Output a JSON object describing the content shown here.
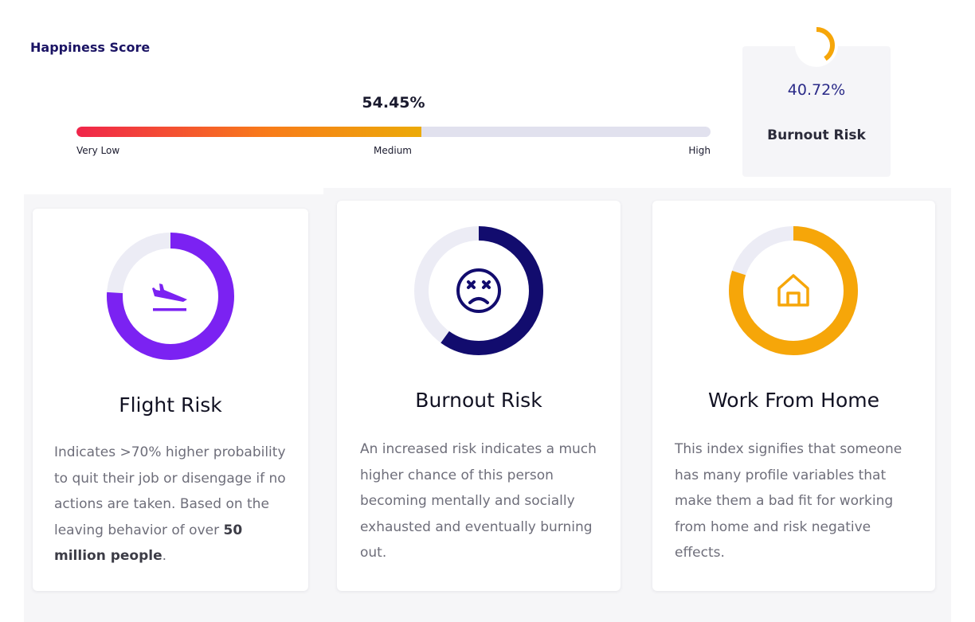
{
  "happiness": {
    "title": "Happiness Score",
    "value_text": "54.45%",
    "value": 54.45,
    "scale_labels": {
      "low": "Very Low",
      "mid": "Medium",
      "high": "High"
    }
  },
  "burnout_summary": {
    "value_text": "40.72%",
    "value": 40.72,
    "label": "Burnout Risk",
    "color": "#f6a609"
  },
  "cards": [
    {
      "id": "flight",
      "title": "Flight Risk",
      "icon": "airplane-departure-icon",
      "color": "#7b22f2",
      "level": 0.76,
      "desc_before": "Indicates >70% higher probability to quit their job or disengage if no actions are taken. Based on the leaving behavior of over ",
      "desc_bold": "50 million people",
      "desc_after": "."
    },
    {
      "id": "burnout",
      "title": "Burnout Risk",
      "icon": "dizzy-face-icon",
      "color": "#120c6e",
      "level": 0.6,
      "desc": "An increased risk indicates a much higher chance of this person becoming mentally and socially exhausted and eventually burning out."
    },
    {
      "id": "wfh",
      "title": "Work From Home",
      "icon": "home-icon",
      "color": "#f6a609",
      "level": 0.8,
      "desc": "This index signifies that someone has many profile variables that make them a bad fit for working from home and risk negative effects."
    }
  ],
  "colors": {
    "track": "#ececf5",
    "accent_navy": "#1b1464",
    "gradient": [
      "#f0254a",
      "#f87b1a",
      "#ecaa08"
    ]
  }
}
